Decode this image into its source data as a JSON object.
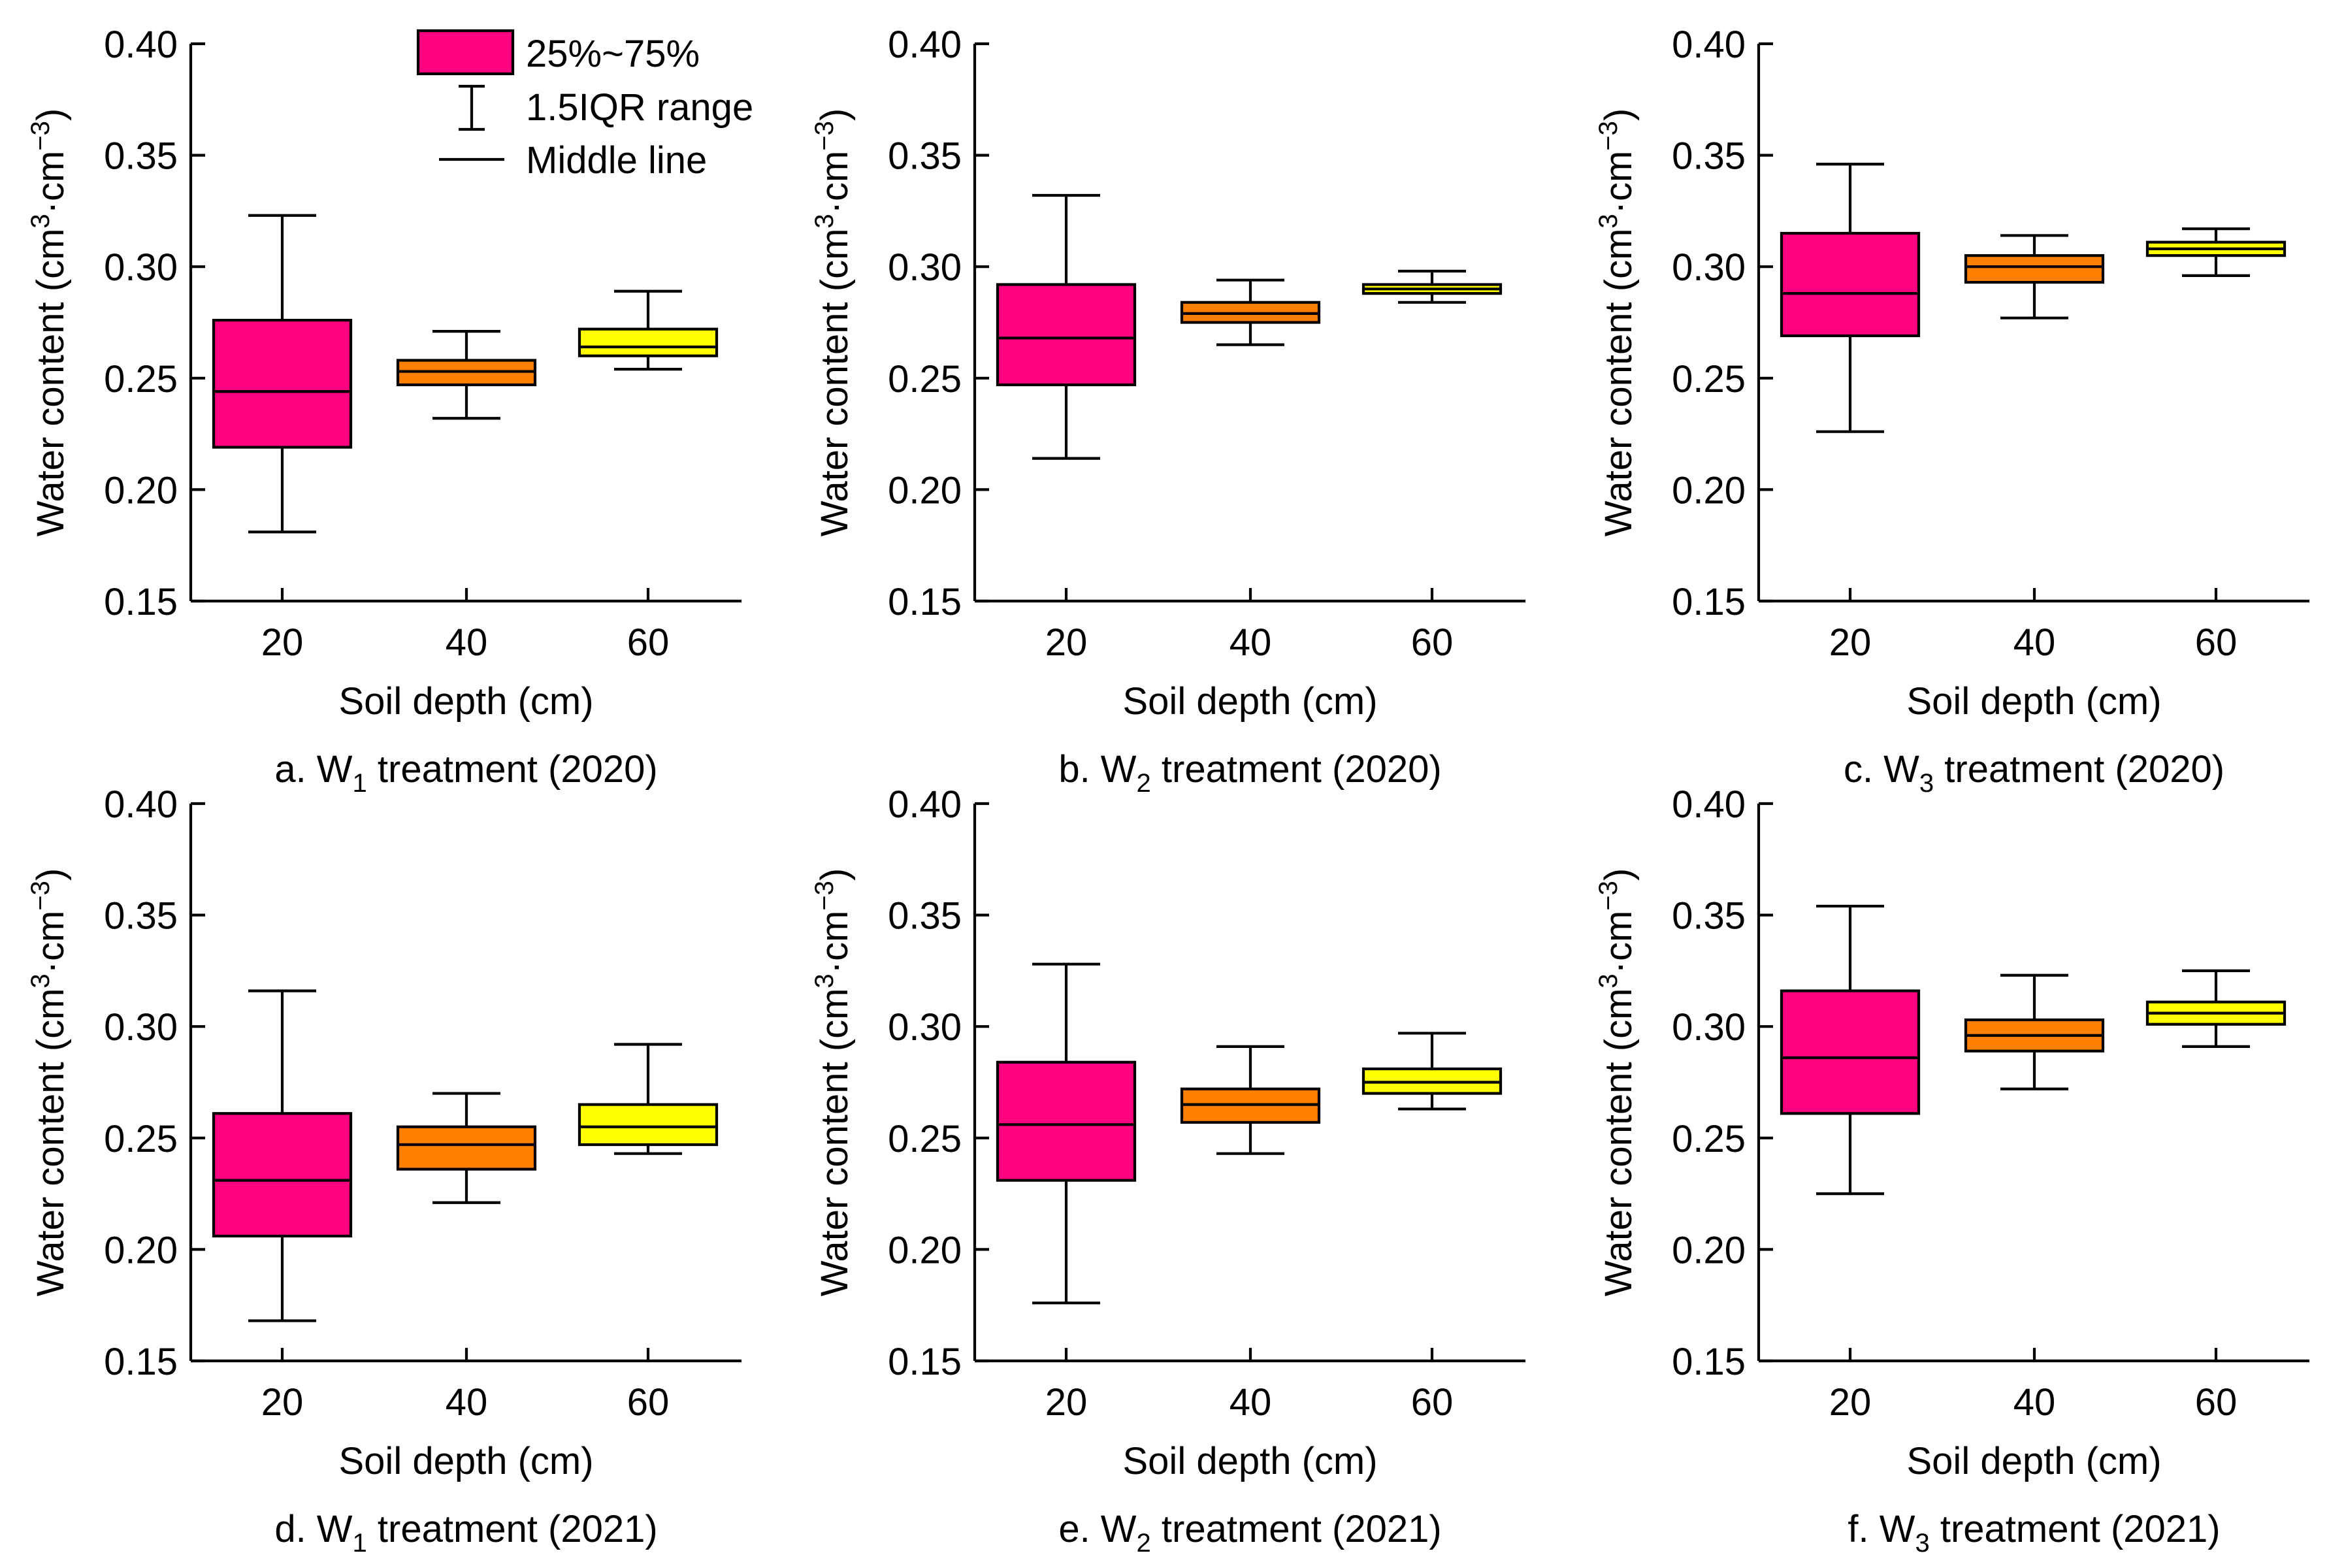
{
  "colors": {
    "box_20": "#ff0080",
    "box_40": "#ff8000",
    "box_60": "#ffff00",
    "stroke": "#000000"
  },
  "legend": {
    "box_label": "25%~75%",
    "whisker_label": "1.5IQR range",
    "median_label": "Middle line"
  },
  "chart_data": [
    {
      "type": "box",
      "caption_prefix": "a. W",
      "caption_sub": "1",
      "caption_suffix": " treatment (2020)",
      "xlabel": "Soil depth (cm)",
      "ylabel_main": "Water content (cm",
      "ylabel_sup1": "3",
      "ylabel_mid": "·cm",
      "ylabel_sup2": "−3",
      "ylabel_end": ")",
      "ylim": [
        0.15,
        0.4
      ],
      "yticks": [
        "0.15",
        "0.20",
        "0.25",
        "0.30",
        "0.35",
        "0.40"
      ],
      "categories": [
        "20",
        "40",
        "60"
      ],
      "boxes": [
        {
          "min": 0.181,
          "q1": 0.219,
          "median": 0.244,
          "q3": 0.276,
          "max": 0.323
        },
        {
          "min": 0.232,
          "q1": 0.247,
          "median": 0.253,
          "q3": 0.258,
          "max": 0.271
        },
        {
          "min": 0.254,
          "q1": 0.26,
          "median": 0.264,
          "q3": 0.272,
          "max": 0.289
        }
      ]
    },
    {
      "type": "box",
      "caption_prefix": "b. W",
      "caption_sub": "2",
      "caption_suffix": " treatment (2020)",
      "xlabel": "Soil depth (cm)",
      "ylabel_main": "Water content (cm",
      "ylabel_sup1": "3",
      "ylabel_mid": "·cm",
      "ylabel_sup2": "−3",
      "ylabel_end": ")",
      "ylim": [
        0.15,
        0.4
      ],
      "yticks": [
        "0.15",
        "0.20",
        "0.25",
        "0.30",
        "0.35",
        "0.40"
      ],
      "categories": [
        "20",
        "40",
        "60"
      ],
      "boxes": [
        {
          "min": 0.214,
          "q1": 0.247,
          "median": 0.268,
          "q3": 0.292,
          "max": 0.332
        },
        {
          "min": 0.265,
          "q1": 0.275,
          "median": 0.279,
          "q3": 0.284,
          "max": 0.294
        },
        {
          "min": 0.284,
          "q1": 0.288,
          "median": 0.29,
          "q3": 0.292,
          "max": 0.298
        }
      ]
    },
    {
      "type": "box",
      "caption_prefix": "c. W",
      "caption_sub": "3",
      "caption_suffix": " treatment (2020)",
      "xlabel": "Soil depth (cm)",
      "ylabel_main": "Water content (cm",
      "ylabel_sup1": "3",
      "ylabel_mid": "·cm",
      "ylabel_sup2": "−3",
      "ylabel_end": ")",
      "ylim": [
        0.15,
        0.4
      ],
      "yticks": [
        "0.15",
        "0.20",
        "0.25",
        "0.30",
        "0.35",
        "0.40"
      ],
      "categories": [
        "20",
        "40",
        "60"
      ],
      "boxes": [
        {
          "min": 0.226,
          "q1": 0.269,
          "median": 0.288,
          "q3": 0.315,
          "max": 0.346
        },
        {
          "min": 0.277,
          "q1": 0.293,
          "median": 0.3,
          "q3": 0.305,
          "max": 0.314
        },
        {
          "min": 0.296,
          "q1": 0.305,
          "median": 0.308,
          "q3": 0.311,
          "max": 0.317
        }
      ]
    },
    {
      "type": "box",
      "caption_prefix": "d. W",
      "caption_sub": "1",
      "caption_suffix": " treatment (2021)",
      "xlabel": "Soil depth (cm)",
      "ylabel_main": "Water content (cm",
      "ylabel_sup1": "3",
      "ylabel_mid": "·cm",
      "ylabel_sup2": "−3",
      "ylabel_end": ")",
      "ylim": [
        0.15,
        0.4
      ],
      "yticks": [
        "0.15",
        "0.20",
        "0.25",
        "0.30",
        "0.35",
        "0.40"
      ],
      "categories": [
        "20",
        "40",
        "60"
      ],
      "boxes": [
        {
          "min": 0.168,
          "q1": 0.206,
          "median": 0.231,
          "q3": 0.261,
          "max": 0.316
        },
        {
          "min": 0.221,
          "q1": 0.236,
          "median": 0.247,
          "q3": 0.255,
          "max": 0.27
        },
        {
          "min": 0.243,
          "q1": 0.247,
          "median": 0.255,
          "q3": 0.265,
          "max": 0.292
        }
      ]
    },
    {
      "type": "box",
      "caption_prefix": "e. W",
      "caption_sub": "2",
      "caption_suffix": " treatment (2021)",
      "xlabel": "Soil depth (cm)",
      "ylabel_main": "Water content (cm",
      "ylabel_sup1": "3",
      "ylabel_mid": "·cm",
      "ylabel_sup2": "−3",
      "ylabel_end": ")",
      "ylim": [
        0.15,
        0.4
      ],
      "yticks": [
        "0.15",
        "0.20",
        "0.25",
        "0.30",
        "0.35",
        "0.40"
      ],
      "categories": [
        "20",
        "40",
        "60"
      ],
      "boxes": [
        {
          "min": 0.176,
          "q1": 0.231,
          "median": 0.256,
          "q3": 0.284,
          "max": 0.328
        },
        {
          "min": 0.243,
          "q1": 0.257,
          "median": 0.265,
          "q3": 0.272,
          "max": 0.291
        },
        {
          "min": 0.263,
          "q1": 0.27,
          "median": 0.275,
          "q3": 0.281,
          "max": 0.297
        }
      ]
    },
    {
      "type": "box",
      "caption_prefix": "f. W",
      "caption_sub": "3",
      "caption_suffix": " treatment (2021)",
      "xlabel": "Soil depth (cm)",
      "ylabel_main": "Water content (cm",
      "ylabel_sup1": "3",
      "ylabel_mid": "·cm",
      "ylabel_sup2": "−3",
      "ylabel_end": ")",
      "ylim": [
        0.15,
        0.4
      ],
      "yticks": [
        "0.15",
        "0.20",
        "0.25",
        "0.30",
        "0.35",
        "0.40"
      ],
      "categories": [
        "20",
        "40",
        "60"
      ],
      "boxes": [
        {
          "min": 0.225,
          "q1": 0.261,
          "median": 0.286,
          "q3": 0.316,
          "max": 0.354
        },
        {
          "min": 0.272,
          "q1": 0.289,
          "median": 0.296,
          "q3": 0.303,
          "max": 0.323
        },
        {
          "min": 0.291,
          "q1": 0.301,
          "median": 0.306,
          "q3": 0.311,
          "max": 0.325
        }
      ]
    }
  ]
}
